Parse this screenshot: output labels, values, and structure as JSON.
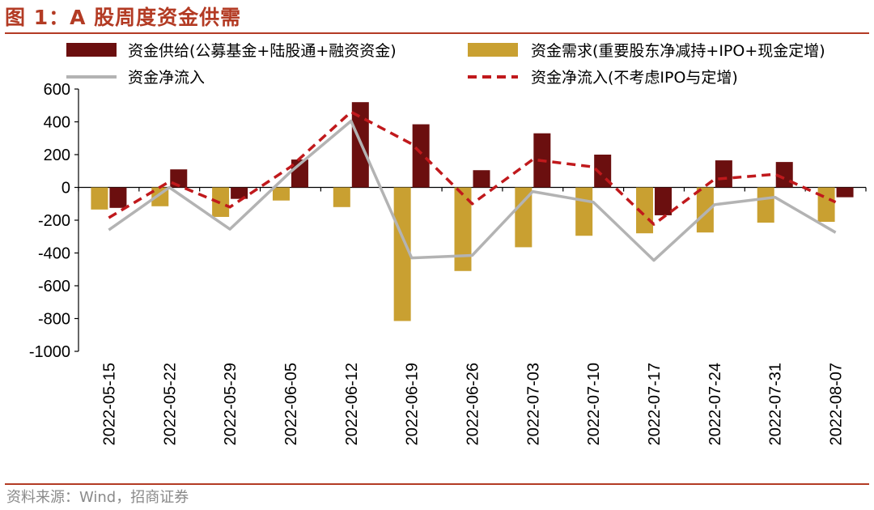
{
  "header": {
    "title": "图 1：A 股周度资金供需"
  },
  "footer": {
    "source": "资料来源：Wind，招商证券"
  },
  "colors": {
    "supply": "#6b0f0f",
    "demand": "#c9a031",
    "net": "#b3b3b3",
    "net_ex": "#c0191c",
    "accent": "#b33b24"
  },
  "chart_data": {
    "type": "bar",
    "title": "A 股周度资金供需",
    "categories": [
      "2022-05-15",
      "2022-05-22",
      "2022-05-29",
      "2022-06-05",
      "2022-06-12",
      "2022-06-19",
      "2022-06-26",
      "2022-07-03",
      "2022-07-10",
      "2022-07-17",
      "2022-07-24",
      "2022-07-31",
      "2022-08-07"
    ],
    "ylim": [
      -1000,
      600
    ],
    "yticks": [
      "600",
      "400",
      "200",
      "0",
      "-200",
      "-400",
      "-600",
      "-800",
      "-1000"
    ],
    "ytick_values": [
      600,
      400,
      200,
      0,
      -200,
      -400,
      -600,
      -800,
      -1000
    ],
    "series": [
      {
        "name": "资金供给(公募基金+陆股通+融资资金)",
        "type": "bar",
        "color": "#6b0f0f",
        "values": [
          -125,
          110,
          -70,
          170,
          520,
          385,
          105,
          330,
          200,
          -170,
          165,
          155,
          -60
        ]
      },
      {
        "name": "资金需求(重要股东净减持+IPO+现金定增)",
        "type": "bar",
        "color": "#c9a031",
        "values": [
          -135,
          -115,
          -180,
          -80,
          -120,
          -815,
          -510,
          -365,
          -295,
          -280,
          -275,
          -215,
          -210
        ]
      },
      {
        "name": "资金净流入",
        "type": "line",
        "color": "#b3b3b3",
        "values": [
          -260,
          0,
          -255,
          95,
          405,
          -430,
          -415,
          -25,
          -90,
          -445,
          -105,
          -60,
          -275
        ]
      },
      {
        "name": "资金净流入(不考虑IPO与定增)",
        "type": "line-dashed",
        "color": "#c0191c",
        "values": [
          -185,
          35,
          -120,
          125,
          460,
          265,
          -100,
          170,
          125,
          -225,
          50,
          80,
          -90
        ]
      }
    ],
    "legend": "top"
  }
}
